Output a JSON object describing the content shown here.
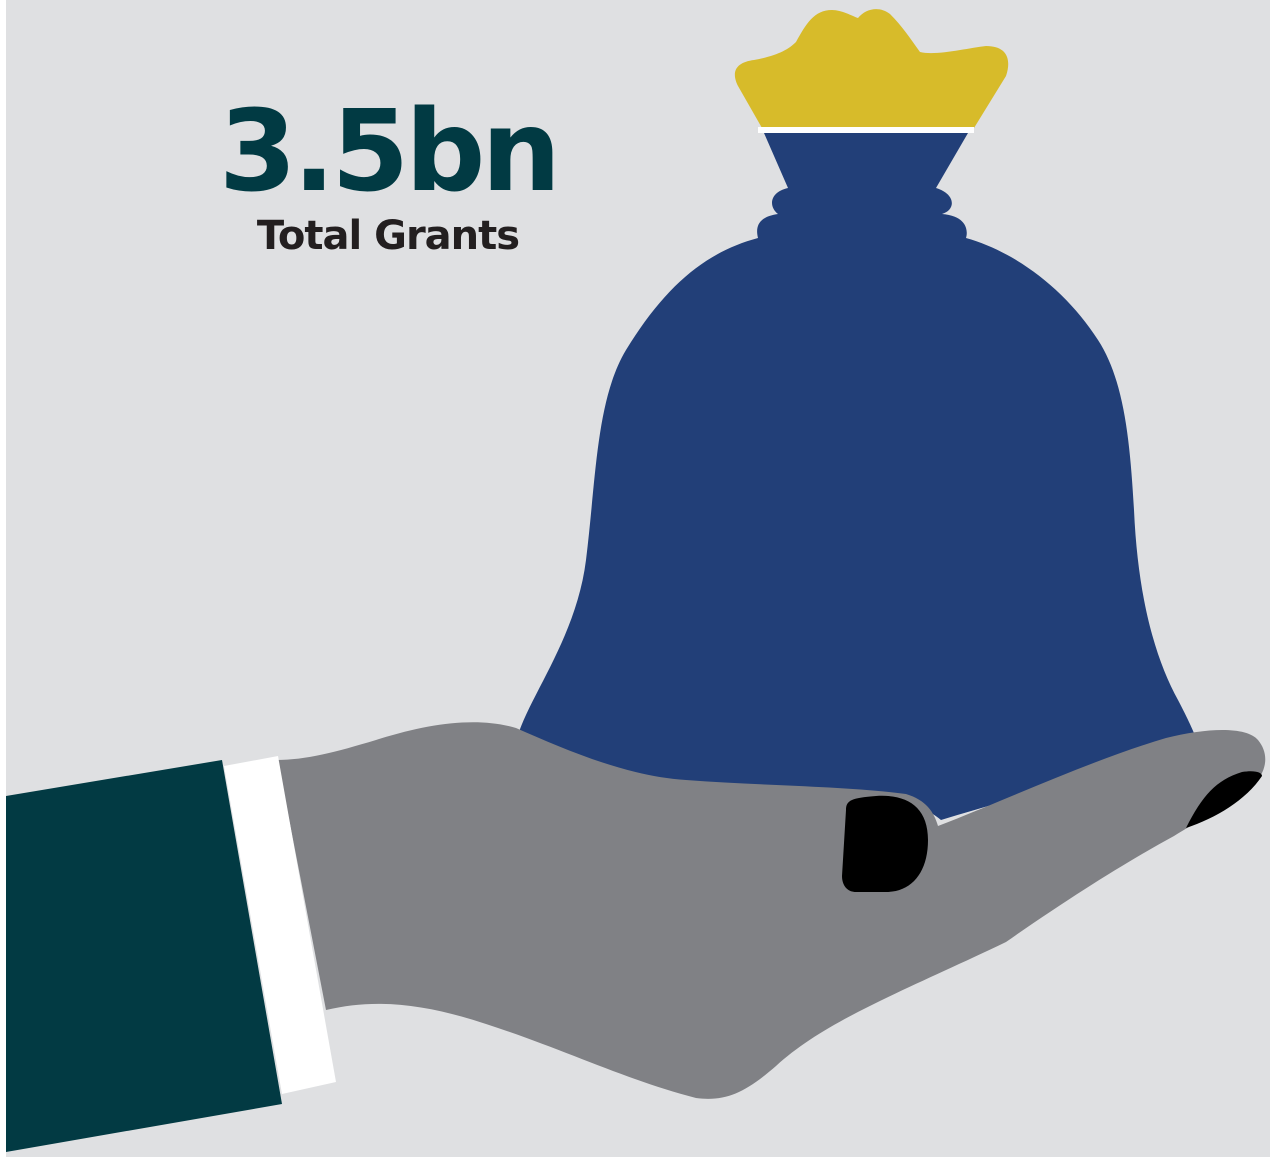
{
  "stat": {
    "value": "3.5bn",
    "label": "Total Grants"
  },
  "colors": {
    "background": "#dfe0e2",
    "value_text": "#013a43",
    "label_text": "#231f20",
    "bag": "#223f78",
    "bag_top": "#d7bb2a",
    "hand": "#808185",
    "sleeve": "#023a43",
    "cuff": "#ffffff",
    "fingernail": "#000000"
  },
  "icons": [
    "money-bag-icon",
    "hand-icon"
  ]
}
